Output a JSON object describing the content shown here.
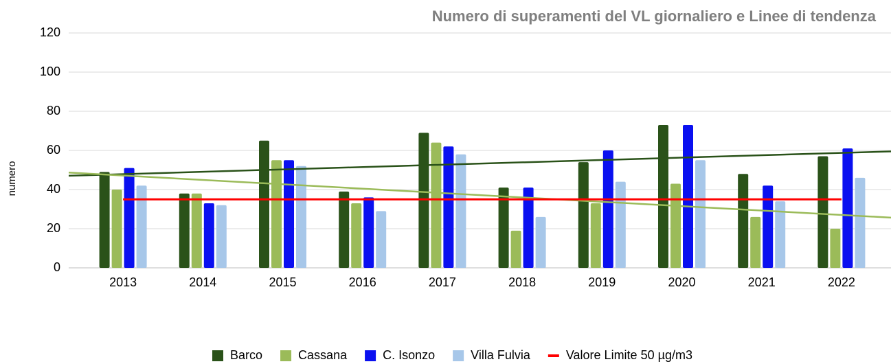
{
  "chart_data": {
    "type": "bar",
    "title": "Numero di superamenti del VL giornaliero e Linee di tendenza",
    "ylabel": "numero",
    "categories": [
      "2013",
      "2014",
      "2015",
      "2016",
      "2017",
      "2018",
      "2019",
      "2020",
      "2021",
      "2022"
    ],
    "series": [
      {
        "name": "Barco",
        "color": "#2a5219",
        "values": [
          49,
          38,
          65,
          39,
          69,
          41,
          54,
          73,
          48,
          57
        ],
        "trendline": true
      },
      {
        "name": "Cassana",
        "color": "#9bbb59",
        "values": [
          40,
          38,
          55,
          33,
          64,
          19,
          33,
          43,
          26,
          20
        ],
        "trendline": true
      },
      {
        "name": "C. Isonzo",
        "color": "#0a10f0",
        "values": [
          51,
          33,
          55,
          36,
          62,
          41,
          60,
          73,
          42,
          61
        ]
      },
      {
        "name": "Villa Fulvia",
        "color": "#a7c7e9",
        "values": [
          42,
          32,
          52,
          29,
          58,
          26,
          44,
          55,
          34,
          46
        ]
      },
      {
        "name": "Valore Limite 50 µg/m3",
        "color": "#ff0000",
        "type": "line",
        "values": [
          35,
          35,
          35,
          35,
          35,
          35,
          35,
          35,
          35,
          35
        ]
      }
    ],
    "ylim": [
      0,
      120
    ],
    "yticks": [
      0,
      20,
      40,
      60,
      80,
      100,
      120
    ],
    "grid": true,
    "legend": "bottom"
  }
}
